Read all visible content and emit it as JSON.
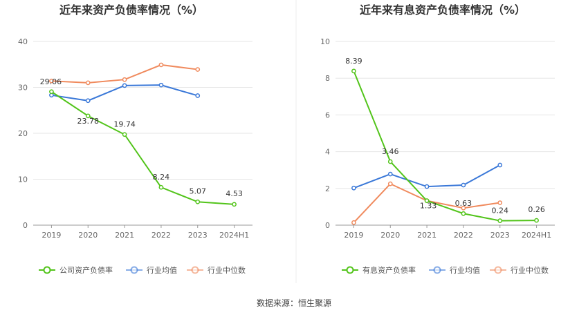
{
  "source": "数据来源：恒生聚源",
  "colors": {
    "green": "#52c41a",
    "blue": "#3a78d8",
    "orange": "#f08a5d",
    "grid": "#e6e6e6",
    "axis": "#999999"
  },
  "chart_data": [
    {
      "type": "line",
      "title": "近年来资产负债率情况（%）",
      "categories": [
        "2019",
        "2020",
        "2021",
        "2022",
        "2023",
        "2024H1"
      ],
      "ylim": [
        0,
        40
      ],
      "yticks": [
        "0",
        "10",
        "20",
        "30",
        "40"
      ],
      "grid": true,
      "legend_position": "bottom",
      "series": [
        {
          "name": "公司资产负债率",
          "color": "#52c41a",
          "values": [
            29.06,
            23.78,
            19.74,
            8.24,
            5.07,
            4.53
          ],
          "labels": [
            "29.06",
            "23.78",
            "19.74",
            "8.24",
            "5.07",
            "4.53"
          ]
        },
        {
          "name": "行业均值",
          "color": "#3a78d8",
          "values": [
            28.3,
            27.1,
            30.4,
            30.5,
            28.2,
            null
          ]
        },
        {
          "name": "行业中位数",
          "color": "#f08a5d",
          "values": [
            31.4,
            31.0,
            31.7,
            34.9,
            33.9,
            null
          ]
        }
      ]
    },
    {
      "type": "line",
      "title": "近年来有息资产负债率情况（%）",
      "categories": [
        "2019",
        "2020",
        "2021",
        "2022",
        "2023",
        "2024H1"
      ],
      "ylim": [
        0,
        10
      ],
      "yticks": [
        "0",
        "2",
        "4",
        "6",
        "8",
        "10"
      ],
      "grid": true,
      "legend_position": "bottom",
      "series": [
        {
          "name": "有息资产负债率",
          "color": "#52c41a",
          "values": [
            8.39,
            3.46,
            1.33,
            0.63,
            0.24,
            0.26
          ],
          "labels": [
            "8.39",
            "3.46",
            "1.33",
            "0.63",
            "0.24",
            "0.26"
          ]
        },
        {
          "name": "行业均值",
          "color": "#3a78d8",
          "values": [
            2.02,
            2.78,
            2.1,
            2.18,
            3.27,
            null
          ]
        },
        {
          "name": "行业中位数",
          "color": "#f08a5d",
          "values": [
            0.14,
            2.25,
            1.33,
            0.93,
            1.22,
            null
          ]
        }
      ]
    }
  ]
}
